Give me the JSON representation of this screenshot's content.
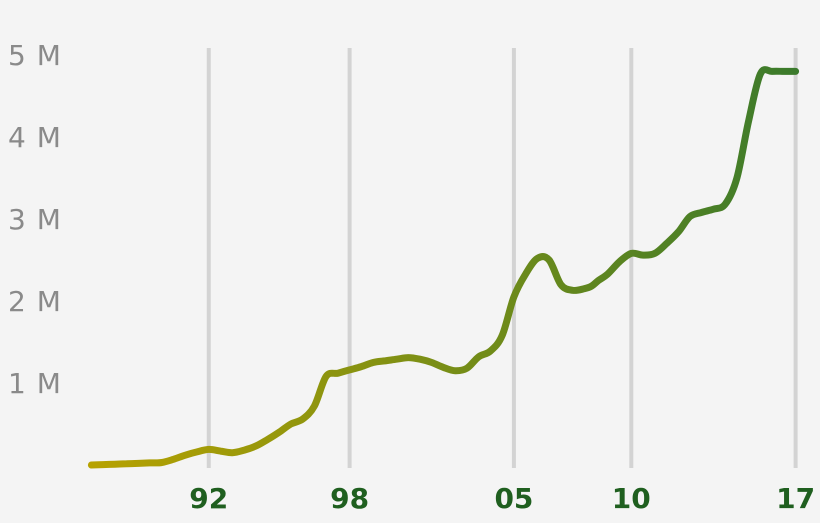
{
  "chart_data": {
    "type": "line",
    "title": "",
    "xlabel": "",
    "ylabel": "",
    "x_ticks": [
      {
        "value": 1992,
        "label": "92"
      },
      {
        "value": 1998,
        "label": "98"
      },
      {
        "value": 2005,
        "label": "05"
      },
      {
        "value": 2010,
        "label": "10"
      },
      {
        "value": 2017,
        "label": "17"
      }
    ],
    "y_ticks": [
      {
        "value": 1000000,
        "label": "1 M"
      },
      {
        "value": 2000000,
        "label": "2 M"
      },
      {
        "value": 3000000,
        "label": "3 M"
      },
      {
        "value": 4000000,
        "label": "4 M"
      },
      {
        "value": 5000000,
        "label": "5 M"
      }
    ],
    "xlim": [
      1986.6,
      2017.4
    ],
    "ylim": [
      0,
      5000000
    ],
    "grid": {
      "vertical": true,
      "horizontal": false
    },
    "legend": "none",
    "colors": {
      "start": "#b8a200",
      "end": "#3a7a2c",
      "grid": "#d3d3d3",
      "y_tick_text": "#8a8a8a",
      "x_tick_text": "#1f5f1f",
      "background": "#f4f4f4"
    },
    "series": [
      {
        "x": [
          1987.0,
          1987.5,
          1988.0,
          1988.5,
          1989.0,
          1989.5,
          1990.0,
          1990.5,
          1991.0,
          1991.5,
          1992.0,
          1992.5,
          1993.0,
          1993.5,
          1994.0,
          1994.5,
          1995.0,
          1995.5,
          1996.0,
          1996.5,
          1997.0,
          1997.5,
          1998.0,
          1998.5,
          1999.0,
          1999.5,
          2000.0,
          2000.5,
          2001.0,
          2001.5,
          2002.0,
          2002.5,
          2003.0,
          2003.5,
          2004.0,
          2004.5,
          2005.0,
          2005.5,
          2006.0,
          2006.5,
          2007.0,
          2007.5,
          2008.0,
          2008.3,
          2008.6,
          2009.0,
          2009.5,
          2010.0,
          2010.5,
          2011.0,
          2011.5,
          2012.0,
          2012.5,
          2013.0,
          2013.5,
          2014.0,
          2014.5,
          2015.0,
          2015.5,
          2016.0,
          2016.5,
          2017.0
        ],
        "values": [
          0,
          5000,
          10000,
          15000,
          20000,
          25000,
          30000,
          70000,
          120000,
          160000,
          190000,
          170000,
          150000,
          180000,
          230000,
          310000,
          400000,
          500000,
          560000,
          720000,
          1080000,
          1120000,
          1160000,
          1200000,
          1250000,
          1270000,
          1290000,
          1310000,
          1290000,
          1250000,
          1190000,
          1150000,
          1180000,
          1320000,
          1390000,
          1580000,
          2050000,
          2330000,
          2520000,
          2500000,
          2200000,
          2130000,
          2150000,
          2180000,
          2250000,
          2330000,
          2480000,
          2580000,
          2560000,
          2580000,
          2700000,
          2840000,
          3030000,
          3080000,
          3120000,
          3180000,
          3500000,
          4200000,
          4770000,
          4800000,
          4800000,
          4800000
        ]
      }
    ]
  }
}
